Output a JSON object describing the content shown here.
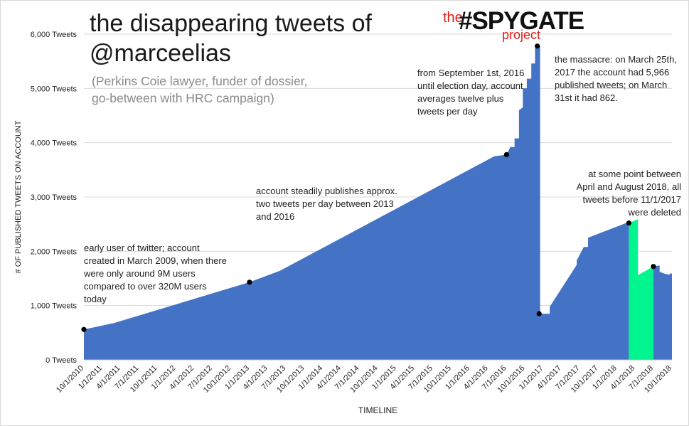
{
  "title_lines": [
    "the disappearing tweets of",
    "@marceelias"
  ],
  "subtitle_lines": [
    "(Perkins Coie lawyer, funder of dossier,",
    "go-between with HRC campaign)"
  ],
  "logo": {
    "the": "the",
    "main": "#SPYGATE",
    "project": "project"
  },
  "colors": {
    "area": "#4472c4",
    "highlight": "#00f58f",
    "grid": "#d9d9d9",
    "text": "#222222"
  },
  "annotations": [
    {
      "id": "early-user",
      "lines": [
        "early user of twitter; account",
        "created in March 2009, when there",
        "were only around 9M users",
        "compared to over 320M users",
        "today"
      ]
    },
    {
      "id": "steady",
      "lines": [
        "account steadily publishes approx.",
        "two tweets per day between 2013",
        "and 2016"
      ]
    },
    {
      "id": "sept",
      "lines": [
        "from September 1st, 2016",
        "until election day, account",
        "averages twelve plus",
        "tweets per day"
      ]
    },
    {
      "id": "massacre",
      "lines": [
        "the massacre: on March 25th,",
        "2017 the account had 5,966",
        "published tweets; on March",
        "31st it had 862."
      ]
    },
    {
      "id": "deleted",
      "lines": [
        "at some point between",
        "April and August 2018, all",
        "tweets before 11/1/2017",
        "were deleted"
      ]
    }
  ],
  "chart_data": {
    "type": "area",
    "xlabel": "TIMELINE",
    "ylabel": "# OF PUBLISHED TWEETS ON ACCOUNT",
    "ylim": [
      0,
      6000
    ],
    "yticks": [
      0,
      1000,
      2000,
      3000,
      4000,
      5000,
      6000
    ],
    "ytick_labels": [
      "0 Tweets",
      "1,000 Tweets",
      "2,000 Tweets",
      "3,000 Tweets",
      "4,000 Tweets",
      "5,000 Tweets",
      "6,000 Tweets"
    ],
    "xtick_labels": [
      "10/1/2010",
      "1/1/2011",
      "4/1/2011",
      "7/1/2011",
      "10/1/2011",
      "1/1/2012",
      "4/1/2012",
      "7/1/2012",
      "10/1/2012",
      "1/1/2013",
      "4/1/2013",
      "7/1/2013",
      "10/1/2013",
      "1/1/2014",
      "4/1/2014",
      "7/1/2014",
      "10/1/2014",
      "1/1/2015",
      "4/1/2015",
      "7/1/2015",
      "10/1/2015",
      "1/1/2016",
      "4/1/2016",
      "7/1/2016",
      "10/1/2016",
      "1/1/2017",
      "4/1/2017",
      "7/1/2017",
      "10/1/2017",
      "1/1/2018",
      "4/1/2018",
      "7/1/2018",
      "10/1/2018"
    ],
    "grid": true,
    "series": [
      {
        "points": [
          [
            "10/1/2010",
            0
          ],
          [
            "10/1/2010",
            560
          ],
          [
            "3/1/2011",
            680
          ],
          [
            "1/1/2013",
            1430
          ],
          [
            "6/1/2013",
            1640
          ],
          [
            "5/1/2016",
            3750
          ],
          [
            "7/1/2016",
            3780
          ],
          [
            "7/20/2016",
            3920
          ],
          [
            "8/10/2016",
            3920
          ],
          [
            "8/10/2016",
            4080
          ],
          [
            "9/1/2016",
            4080
          ],
          [
            "9/1/2016",
            4600
          ],
          [
            "9/20/2016",
            4650
          ],
          [
            "9/20/2016",
            5000
          ],
          [
            "10/10/2016",
            5000
          ],
          [
            "10/10/2016",
            5180
          ],
          [
            "11/1/2016",
            5180
          ],
          [
            "11/1/2016",
            5460
          ],
          [
            "11/20/2016",
            5460
          ],
          [
            "11/20/2016",
            5750
          ],
          [
            "12/15/2016",
            5780
          ],
          [
            "12/15/2016",
            850
          ],
          [
            "2/1/2017",
            850
          ],
          [
            "2/1/2017",
            980
          ],
          [
            "6/15/2017",
            1750
          ],
          [
            "6/15/2017",
            1830
          ],
          [
            "7/20/2017",
            2080
          ],
          [
            "8/10/2017",
            2080
          ],
          [
            "8/10/2017",
            2250
          ],
          [
            "3/1/2018",
            2540
          ],
          [
            "3/1/2018",
            0
          ]
        ]
      },
      {
        "highlight": true,
        "points": [
          [
            "3/1/2018",
            0
          ],
          [
            "3/1/2018",
            2520
          ],
          [
            "4/15/2018",
            2590
          ],
          [
            "4/15/2018",
            1560
          ],
          [
            "7/1/2018",
            1720
          ],
          [
            "7/1/2018",
            0
          ]
        ]
      },
      {
        "points": [
          [
            "7/1/2018",
            0
          ],
          [
            "7/1/2018",
            1720
          ],
          [
            "8/1/2018",
            1740
          ],
          [
            "8/1/2018",
            1620
          ],
          [
            "9/1/2018",
            1580
          ],
          [
            "9/20/2018",
            1570
          ],
          [
            "9/20/2018",
            1590
          ],
          [
            "10/1/2018",
            1590
          ],
          [
            "10/1/2018",
            0
          ]
        ]
      }
    ],
    "markers": [
      [
        "10/1/2010",
        560
      ],
      [
        "1/1/2013",
        1430
      ],
      [
        "7/1/2016",
        3780
      ],
      [
        "12/1/2016",
        5780
      ],
      [
        "12/10/2016",
        850
      ],
      [
        "3/1/2018",
        2520
      ],
      [
        "7/1/2018",
        1720
      ]
    ]
  }
}
